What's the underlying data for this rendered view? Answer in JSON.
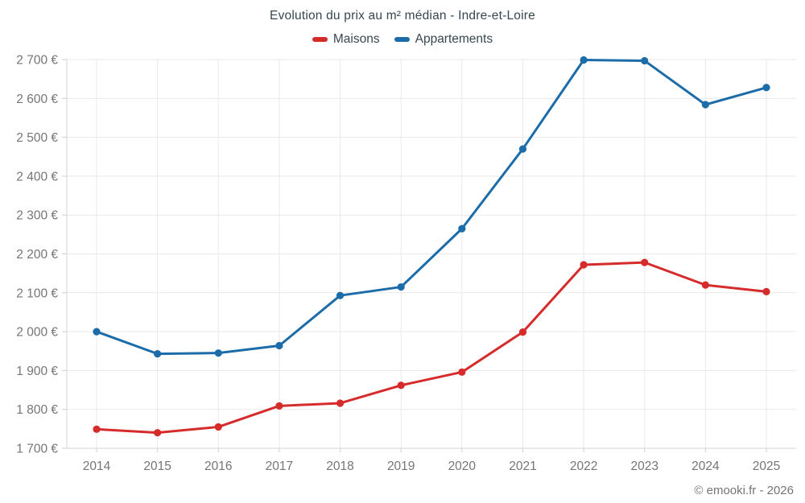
{
  "chart_data": {
    "type": "line",
    "title": "Evolution du prix au m² médian - Indre-et-Loire",
    "categories": [
      "2014",
      "2015",
      "2016",
      "2017",
      "2018",
      "2019",
      "2020",
      "2021",
      "2022",
      "2023",
      "2024",
      "2025"
    ],
    "series": [
      {
        "name": "Maisons",
        "color": "#d62b2b",
        "values": [
          1749,
          1740,
          1755,
          1809,
          1816,
          1862,
          1896,
          1999,
          2172,
          2178,
          2120,
          2103
        ]
      },
      {
        "name": "Appartements",
        "color": "#1b6ca8",
        "values": [
          2000,
          1943,
          1945,
          1964,
          2093,
          2115,
          2265,
          2470,
          2699,
          2697,
          2584,
          2628
        ]
      }
    ],
    "ylabel": "",
    "xlabel": "",
    "ylim": [
      1700,
      2700
    ],
    "ytick_step": 100,
    "ytick_suffix": " €",
    "grid": true,
    "legend_position": "top",
    "footer": "© emooki.fr - 2026"
  },
  "style": {
    "grid_color": "#e9e9e9",
    "axis_color": "#d4d4d4",
    "tick_color": "#cfcfcf",
    "tick_label_color": "#757575",
    "title_color": "#37474f"
  }
}
